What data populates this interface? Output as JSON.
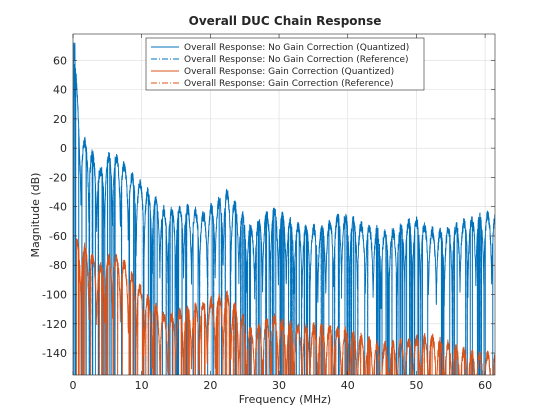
{
  "chart_data": {
    "type": "line",
    "title": "Overall DUC Chain Response",
    "xlabel": "Frequency (MHz)",
    "ylabel": "Magnitude (dB)",
    "xlim": [
      0,
      61.44
    ],
    "ylim": [
      -155,
      78
    ],
    "xticks": [
      0,
      10,
      20,
      30,
      40,
      50,
      60
    ],
    "yticks": [
      -140,
      -120,
      -100,
      -80,
      -60,
      -40,
      -20,
      0,
      20,
      40,
      60
    ],
    "grid": true,
    "legend_position": "top-center",
    "series": [
      {
        "name": "Overall Response: No Gain Correction (Quantized)",
        "color": "#0072bd",
        "style": "solid"
      },
      {
        "name": "Overall Response: No Gain Correction (Reference)",
        "color": "#0072bd",
        "style": "dashdot"
      },
      {
        "name": "Overall Response: Gain Correction (Quantized)",
        "color": "#d95319",
        "style": "solid"
      },
      {
        "name": "Overall Response: Gain Correction (Reference)",
        "color": "#d95319",
        "style": "dashdot"
      }
    ],
    "envelope_peaks": {
      "no_gain_correction": [
        [
          0.2,
          72
        ],
        [
          1.0,
          12
        ],
        [
          2.5,
          3
        ],
        [
          4.0,
          -12
        ],
        [
          5.5,
          0
        ],
        [
          7.0,
          -5
        ],
        [
          8.5,
          -15
        ],
        [
          11.0,
          -27
        ],
        [
          13.5,
          -40
        ],
        [
          16.0,
          -36
        ],
        [
          19.0,
          -42
        ],
        [
          22.5,
          -27
        ],
        [
          26.0,
          -52
        ],
        [
          29.0,
          -38
        ],
        [
          32.5,
          -50
        ],
        [
          36.0,
          -52
        ],
        [
          39.0,
          -42
        ],
        [
          42.5,
          -50
        ],
        [
          46.0,
          -55
        ],
        [
          49.5,
          -45
        ],
        [
          53.0,
          -55
        ],
        [
          56.5,
          -48
        ],
        [
          60.0,
          -42
        ]
      ],
      "gain_correction": [
        [
          0.5,
          -60
        ],
        [
          1.0,
          -62
        ],
        [
          2.0,
          -65
        ],
        [
          4.0,
          -78
        ],
        [
          5.5,
          -70
        ],
        [
          7.0,
          -72
        ],
        [
          11.0,
          -100
        ],
        [
          13.5,
          -112
        ],
        [
          16.0,
          -108
        ],
        [
          22.5,
          -97
        ],
        [
          26.0,
          -122
        ],
        [
          29.0,
          -112
        ],
        [
          33.0,
          -120
        ],
        [
          36.0,
          -118
        ],
        [
          40.0,
          -122
        ],
        [
          45.0,
          -132
        ],
        [
          52.0,
          -125
        ],
        [
          57.0,
          -135
        ],
        [
          60.0,
          -138
        ]
      ]
    }
  }
}
